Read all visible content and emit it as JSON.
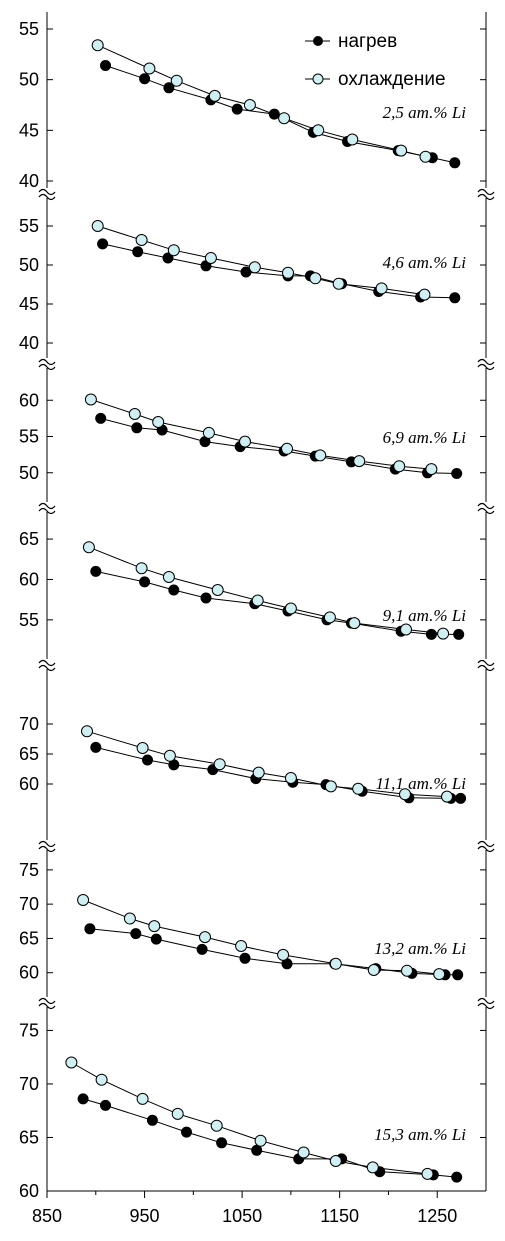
{
  "chart_data": {
    "type": "line",
    "x_ticks": [
      850,
      950,
      1050,
      1150,
      1250
    ],
    "xlim": [
      850,
      1300
    ],
    "grid": false,
    "legend": {
      "position": "top-right",
      "entries": [
        {
          "label": "нагрев",
          "marker": "filled-circle",
          "color": "#000000"
        },
        {
          "label": "охлаждение",
          "marker": "open-circle",
          "color": "#cfeff3"
        }
      ]
    },
    "panels": [
      {
        "label": "2,5 ат.% Li",
        "ylim": [
          40,
          55
        ],
        "yticks": [
          40,
          45,
          50,
          55
        ],
        "series": [
          {
            "name": "нагрев",
            "x": [
              910,
              950,
              975,
              1018,
              1045,
              1083,
              1123,
              1158,
              1210,
              1245,
              1268
            ],
            "y": [
              51.4,
              50.1,
              49.2,
              48.0,
              47.1,
              46.6,
              44.8,
              43.9,
              43.0,
              42.3,
              41.8
            ]
          },
          {
            "name": "охлаждение",
            "x": [
              902,
              955,
              983,
              1022,
              1058,
              1093,
              1128,
              1163,
              1213,
              1238
            ],
            "y": [
              53.4,
              51.1,
              49.9,
              48.4,
              47.5,
              46.2,
              45.0,
              44.1,
              43.0,
              42.4
            ]
          }
        ]
      },
      {
        "label": "4,6 ат.% Li",
        "ylim": [
          40,
          55
        ],
        "yticks": [
          40,
          45,
          50,
          55
        ],
        "series": [
          {
            "name": "нагрев",
            "x": [
              907,
              943,
              974,
              1013,
              1054,
              1097,
              1120,
              1152,
              1190,
              1233,
              1268
            ],
            "y": [
              52.7,
              51.7,
              50.9,
              49.9,
              49.1,
              48.6,
              48.6,
              47.6,
              46.6,
              45.9,
              45.8
            ]
          },
          {
            "name": "охлаждение",
            "x": [
              902,
              947,
              980,
              1018,
              1063,
              1097,
              1125,
              1149,
              1193,
              1237
            ],
            "y": [
              55.0,
              53.2,
              51.9,
              50.9,
              49.7,
              49.0,
              48.3,
              47.6,
              47.0,
              46.2
            ]
          }
        ]
      },
      {
        "label": "6,9 ат.% Li",
        "ylim": [
          49,
          61
        ],
        "yticks": [
          50,
          55,
          60
        ],
        "series": [
          {
            "name": "нагрев",
            "x": [
              905,
              942,
              968,
              1012,
              1048,
              1093,
              1125,
              1162,
              1207,
              1240,
              1270
            ],
            "y": [
              57.5,
              56.2,
              55.9,
              54.3,
              53.6,
              53.0,
              52.3,
              51.5,
              50.5,
              50.0,
              49.9
            ]
          },
          {
            "name": "охлаждение",
            "x": [
              895,
              940,
              964,
              1016,
              1053,
              1096,
              1130,
              1170,
              1211,
              1244
            ],
            "y": [
              60.1,
              58.1,
              57.0,
              55.5,
              54.3,
              53.3,
              52.4,
              51.6,
              50.9,
              50.5
            ]
          }
        ]
      },
      {
        "label": "9,1 ат.% Li",
        "ylim": [
          53,
          66
        ],
        "yticks": [
          55,
          60,
          65
        ],
        "series": [
          {
            "name": "нагрев",
            "x": [
              900,
              950,
              980,
              1013,
              1063,
              1097,
              1137,
              1162,
              1213,
              1244,
              1272
            ],
            "y": [
              61.0,
              59.7,
              58.7,
              57.7,
              57.0,
              56.1,
              55.0,
              54.6,
              53.6,
              53.2,
              53.2
            ]
          },
          {
            "name": "охлаждение",
            "x": [
              893,
              947,
              975,
              1025,
              1066,
              1100,
              1140,
              1165,
              1218,
              1256
            ],
            "y": [
              64.0,
              61.4,
              60.3,
              58.7,
              57.4,
              56.4,
              55.3,
              54.6,
              53.8,
              53.3
            ]
          }
        ]
      },
      {
        "label": "11,1 ат.% Li",
        "ylim": [
          57,
          75
        ],
        "yticks": [
          60,
          65,
          70
        ],
        "series": [
          {
            "name": "нагрев",
            "x": [
              900,
              953,
              980,
              1020,
              1064,
              1102,
              1136,
              1173,
              1221,
              1264,
              1274
            ],
            "y": [
              66.1,
              64.0,
              63.2,
              62.4,
              60.9,
              60.3,
              59.9,
              58.8,
              57.7,
              57.6,
              57.6
            ]
          },
          {
            "name": "охлаждение",
            "x": [
              891,
              948,
              976,
              1027,
              1067,
              1100,
              1141,
              1169,
              1217,
              1260
            ],
            "y": [
              68.8,
              66.0,
              64.7,
              63.3,
              61.9,
              61.0,
              59.6,
              59.2,
              58.3,
              57.9
            ]
          }
        ]
      },
      {
        "label": "13,2 ат.% Li",
        "ylim": [
          58.5,
          76
        ],
        "yticks": [
          60,
          65,
          70,
          75
        ],
        "series": [
          {
            "name": "нагрев",
            "x": [
              894,
              941,
              962,
              1009,
              1053,
              1096,
              1145,
              1187,
              1224,
              1258,
              1271
            ],
            "y": [
              66.4,
              65.7,
              64.9,
              63.4,
              62.1,
              61.3,
              61.3,
              60.6,
              59.9,
              59.7,
              59.7
            ]
          },
          {
            "name": "охлаждение",
            "x": [
              887,
              935,
              960,
              1012,
              1049,
              1092,
              1146,
              1185,
              1219,
              1252
            ],
            "y": [
              70.6,
              67.9,
              66.8,
              65.2,
              63.9,
              62.6,
              61.3,
              60.4,
              60.3,
              59.8
            ]
          }
        ]
      },
      {
        "label": "15,3 ат.% Li",
        "ylim": [
          60,
          77
        ],
        "yticks": [
          60,
          65,
          70,
          75
        ],
        "series": [
          {
            "name": "нагрев",
            "x": [
              887,
              910,
              958,
              993,
              1029,
              1065,
              1108,
              1152,
              1191,
              1246,
              1270
            ],
            "y": [
              68.6,
              68.0,
              66.6,
              65.5,
              64.5,
              63.8,
              63.0,
              63.0,
              61.8,
              61.5,
              61.3
            ]
          },
          {
            "name": "охлаждение",
            "x": [
              875,
              906,
              948,
              984,
              1024,
              1069,
              1113,
              1146,
              1184,
              1240
            ],
            "y": [
              72.0,
              70.4,
              68.6,
              67.2,
              66.1,
              64.7,
              63.6,
              62.8,
              62.2,
              61.6
            ]
          }
        ]
      }
    ]
  }
}
